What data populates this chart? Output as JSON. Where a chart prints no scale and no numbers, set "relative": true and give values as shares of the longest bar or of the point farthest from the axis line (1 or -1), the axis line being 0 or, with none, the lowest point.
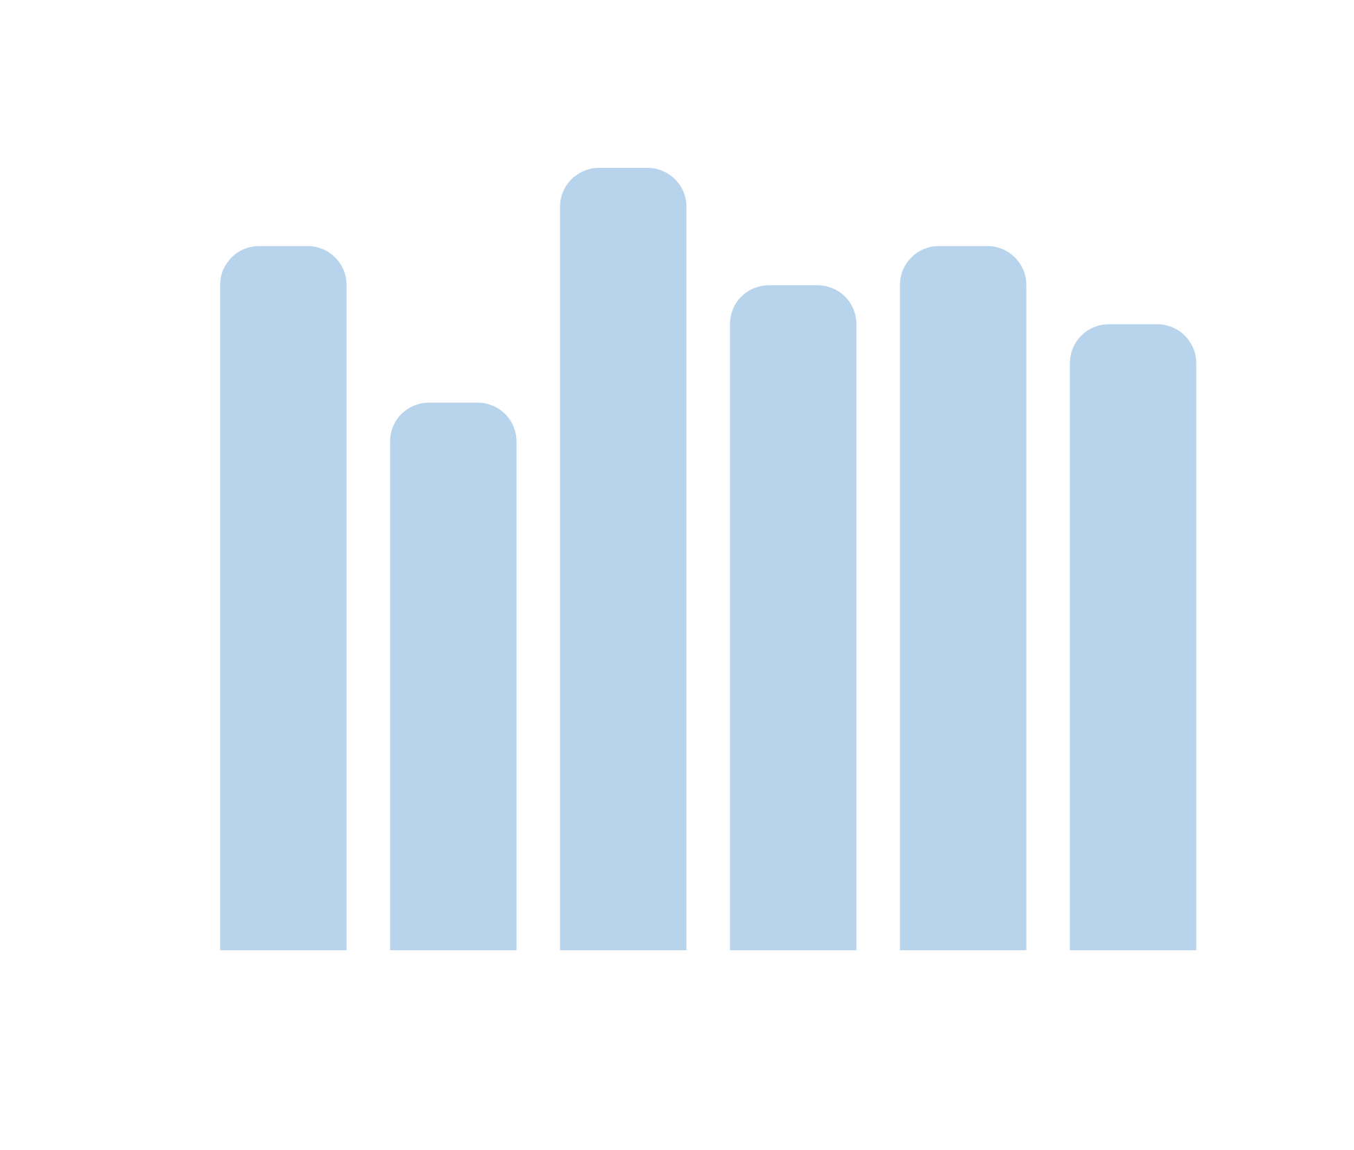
{
  "chart_data": {
    "type": "bar",
    "relative": true,
    "categories": [
      null,
      null,
      null,
      null,
      null,
      null
    ],
    "values": [
      0.9,
      0.7,
      1,
      0.85,
      0.9,
      0.8
    ],
    "color": "#b7d4ec"
  }
}
